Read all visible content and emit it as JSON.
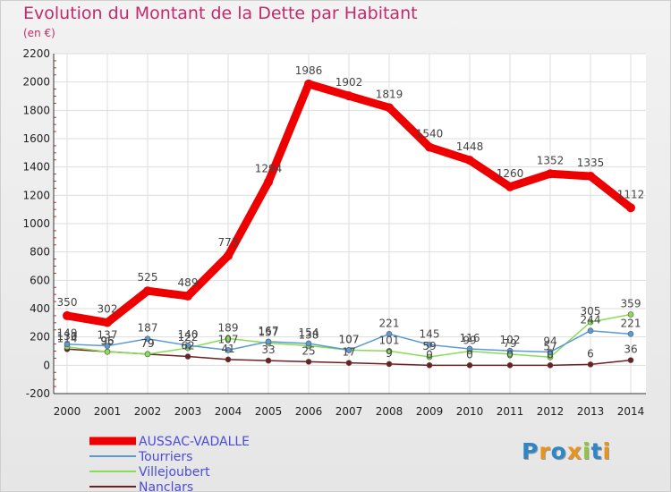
{
  "chart_data": {
    "type": "line",
    "title": "Evolution du Montant de la Dette par Habitant",
    "subtitle": "(en €)",
    "xlabel": "",
    "ylabel": "",
    "ylim": [
      -200,
      2200
    ],
    "yticks": [
      -200,
      0,
      200,
      400,
      600,
      800,
      1000,
      1200,
      1400,
      1600,
      1800,
      2000,
      2200
    ],
    "categories": [
      "2000",
      "2001",
      "2002",
      "2003",
      "2004",
      "2005",
      "2006",
      "2007",
      "2008",
      "2009",
      "2010",
      "2011",
      "2012",
      "2013",
      "2014"
    ],
    "grid": true,
    "legend_position": "bottom-left",
    "series": [
      {
        "name": "AUSSAC-VADALLE",
        "color": "#ee0000",
        "values": [
          350,
          302,
          525,
          489,
          773,
          1294,
          1986,
          1902,
          1819,
          1540,
          1448,
          1260,
          1352,
          1335,
          1112
        ]
      },
      {
        "name": "Tourriers",
        "color": "#5b9bd5",
        "values": [
          149,
          137,
          187,
          140,
          107,
          167,
          154,
          107,
          221,
          145,
          116,
          102,
          94,
          244,
          221
        ]
      },
      {
        "name": "Villejoubert",
        "color": "#88dd55",
        "values": [
          130,
          95,
          79,
          122,
          189,
          157,
          138,
          107,
          101,
          59,
          99,
          79,
          57,
          305,
          359
        ]
      },
      {
        "name": "Nanclars",
        "color": "#6e1f1f",
        "values": [
          114,
          96,
          79,
          62,
          41,
          33,
          25,
          17,
          9,
          0,
          0,
          0,
          0,
          6,
          36
        ]
      }
    ]
  },
  "brand": {
    "letters": [
      "P",
      "r",
      "o",
      "x",
      "i",
      "t",
      "i"
    ],
    "colors": [
      "#2f86c6",
      "#e8941c",
      "#2f86c6",
      "#e8941c",
      "#8cc63f",
      "#2f86c6",
      "#e8941c"
    ]
  }
}
